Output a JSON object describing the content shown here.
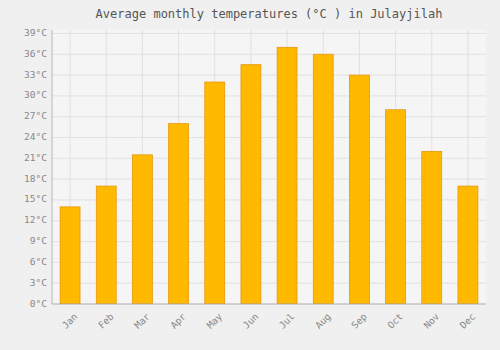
{
  "chart_data": {
    "type": "bar",
    "title": "Average monthly temperatures (°C ) in Julayjilah",
    "categories": [
      "Jan",
      "Feb",
      "Mar",
      "Apr",
      "May",
      "Jun",
      "Jul",
      "Aug",
      "Sep",
      "Oct",
      "Nov",
      "Dec"
    ],
    "values": [
      14,
      17,
      21.5,
      26,
      32,
      34.5,
      37,
      36,
      33,
      28,
      22,
      17
    ],
    "color": "#FFBA00",
    "ylim": [
      0,
      39.5
    ],
    "yticks": [
      {
        "value": 0,
        "label": "0°C"
      },
      {
        "value": 3,
        "label": "3°C"
      },
      {
        "value": 6,
        "label": "6°C"
      },
      {
        "value": 9,
        "label": "9°C"
      },
      {
        "value": 12,
        "label": "12°C"
      },
      {
        "value": 15,
        "label": "15°C"
      },
      {
        "value": 18,
        "label": "18°C"
      },
      {
        "value": 21,
        "label": "21°C"
      },
      {
        "value": 24,
        "label": "24°C"
      },
      {
        "value": 27,
        "label": "27°C"
      },
      {
        "value": 30,
        "label": "30°C"
      },
      {
        "value": 33,
        "label": "33°C"
      },
      {
        "value": 36,
        "label": "36°C"
      },
      {
        "value": 39,
        "label": "39°C"
      }
    ],
    "grid": true
  }
}
